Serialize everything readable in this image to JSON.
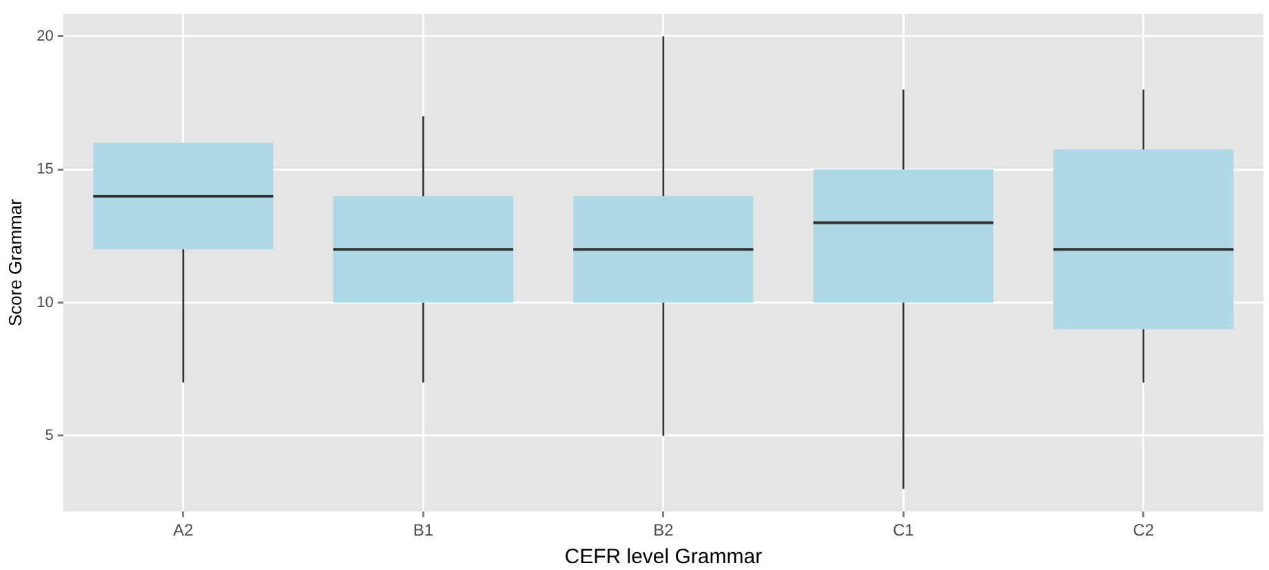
{
  "chart_data": {
    "type": "box",
    "xlabel": "CEFR level Grammar",
    "ylabel": "Score Grammar",
    "categories": [
      "A2",
      "B1",
      "B2",
      "C1",
      "C2"
    ],
    "boxes": [
      {
        "low": 7,
        "q1": 12,
        "median": 14,
        "q3": 16,
        "high": 16
      },
      {
        "low": 7,
        "q1": 10,
        "median": 12,
        "q3": 14,
        "high": 17
      },
      {
        "low": 5,
        "q1": 10,
        "median": 12,
        "q3": 14,
        "high": 20
      },
      {
        "low": 3,
        "q1": 10,
        "median": 13,
        "q3": 15,
        "high": 18
      },
      {
        "low": 7,
        "q1": 9,
        "median": 12,
        "q3": 15.75,
        "high": 18
      }
    ],
    "color": "#add8e6",
    "ylim": [
      2.15,
      20.85
    ],
    "yticks": [
      5,
      10,
      15,
      20
    ],
    "grid": true,
    "legend": false
  }
}
